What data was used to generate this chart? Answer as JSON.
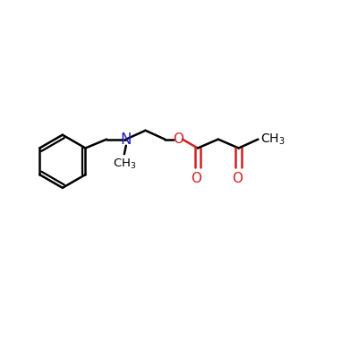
{
  "bg_color": "#ffffff",
  "bond_color": "#000000",
  "N_color": "#2222bb",
  "O_color": "#cc2222",
  "bond_width": 1.8,
  "font_size": 10,
  "fig_width": 4.0,
  "fig_height": 4.0,
  "dpi": 100,
  "xlim": [
    0,
    10
  ],
  "ylim": [
    0,
    10
  ]
}
